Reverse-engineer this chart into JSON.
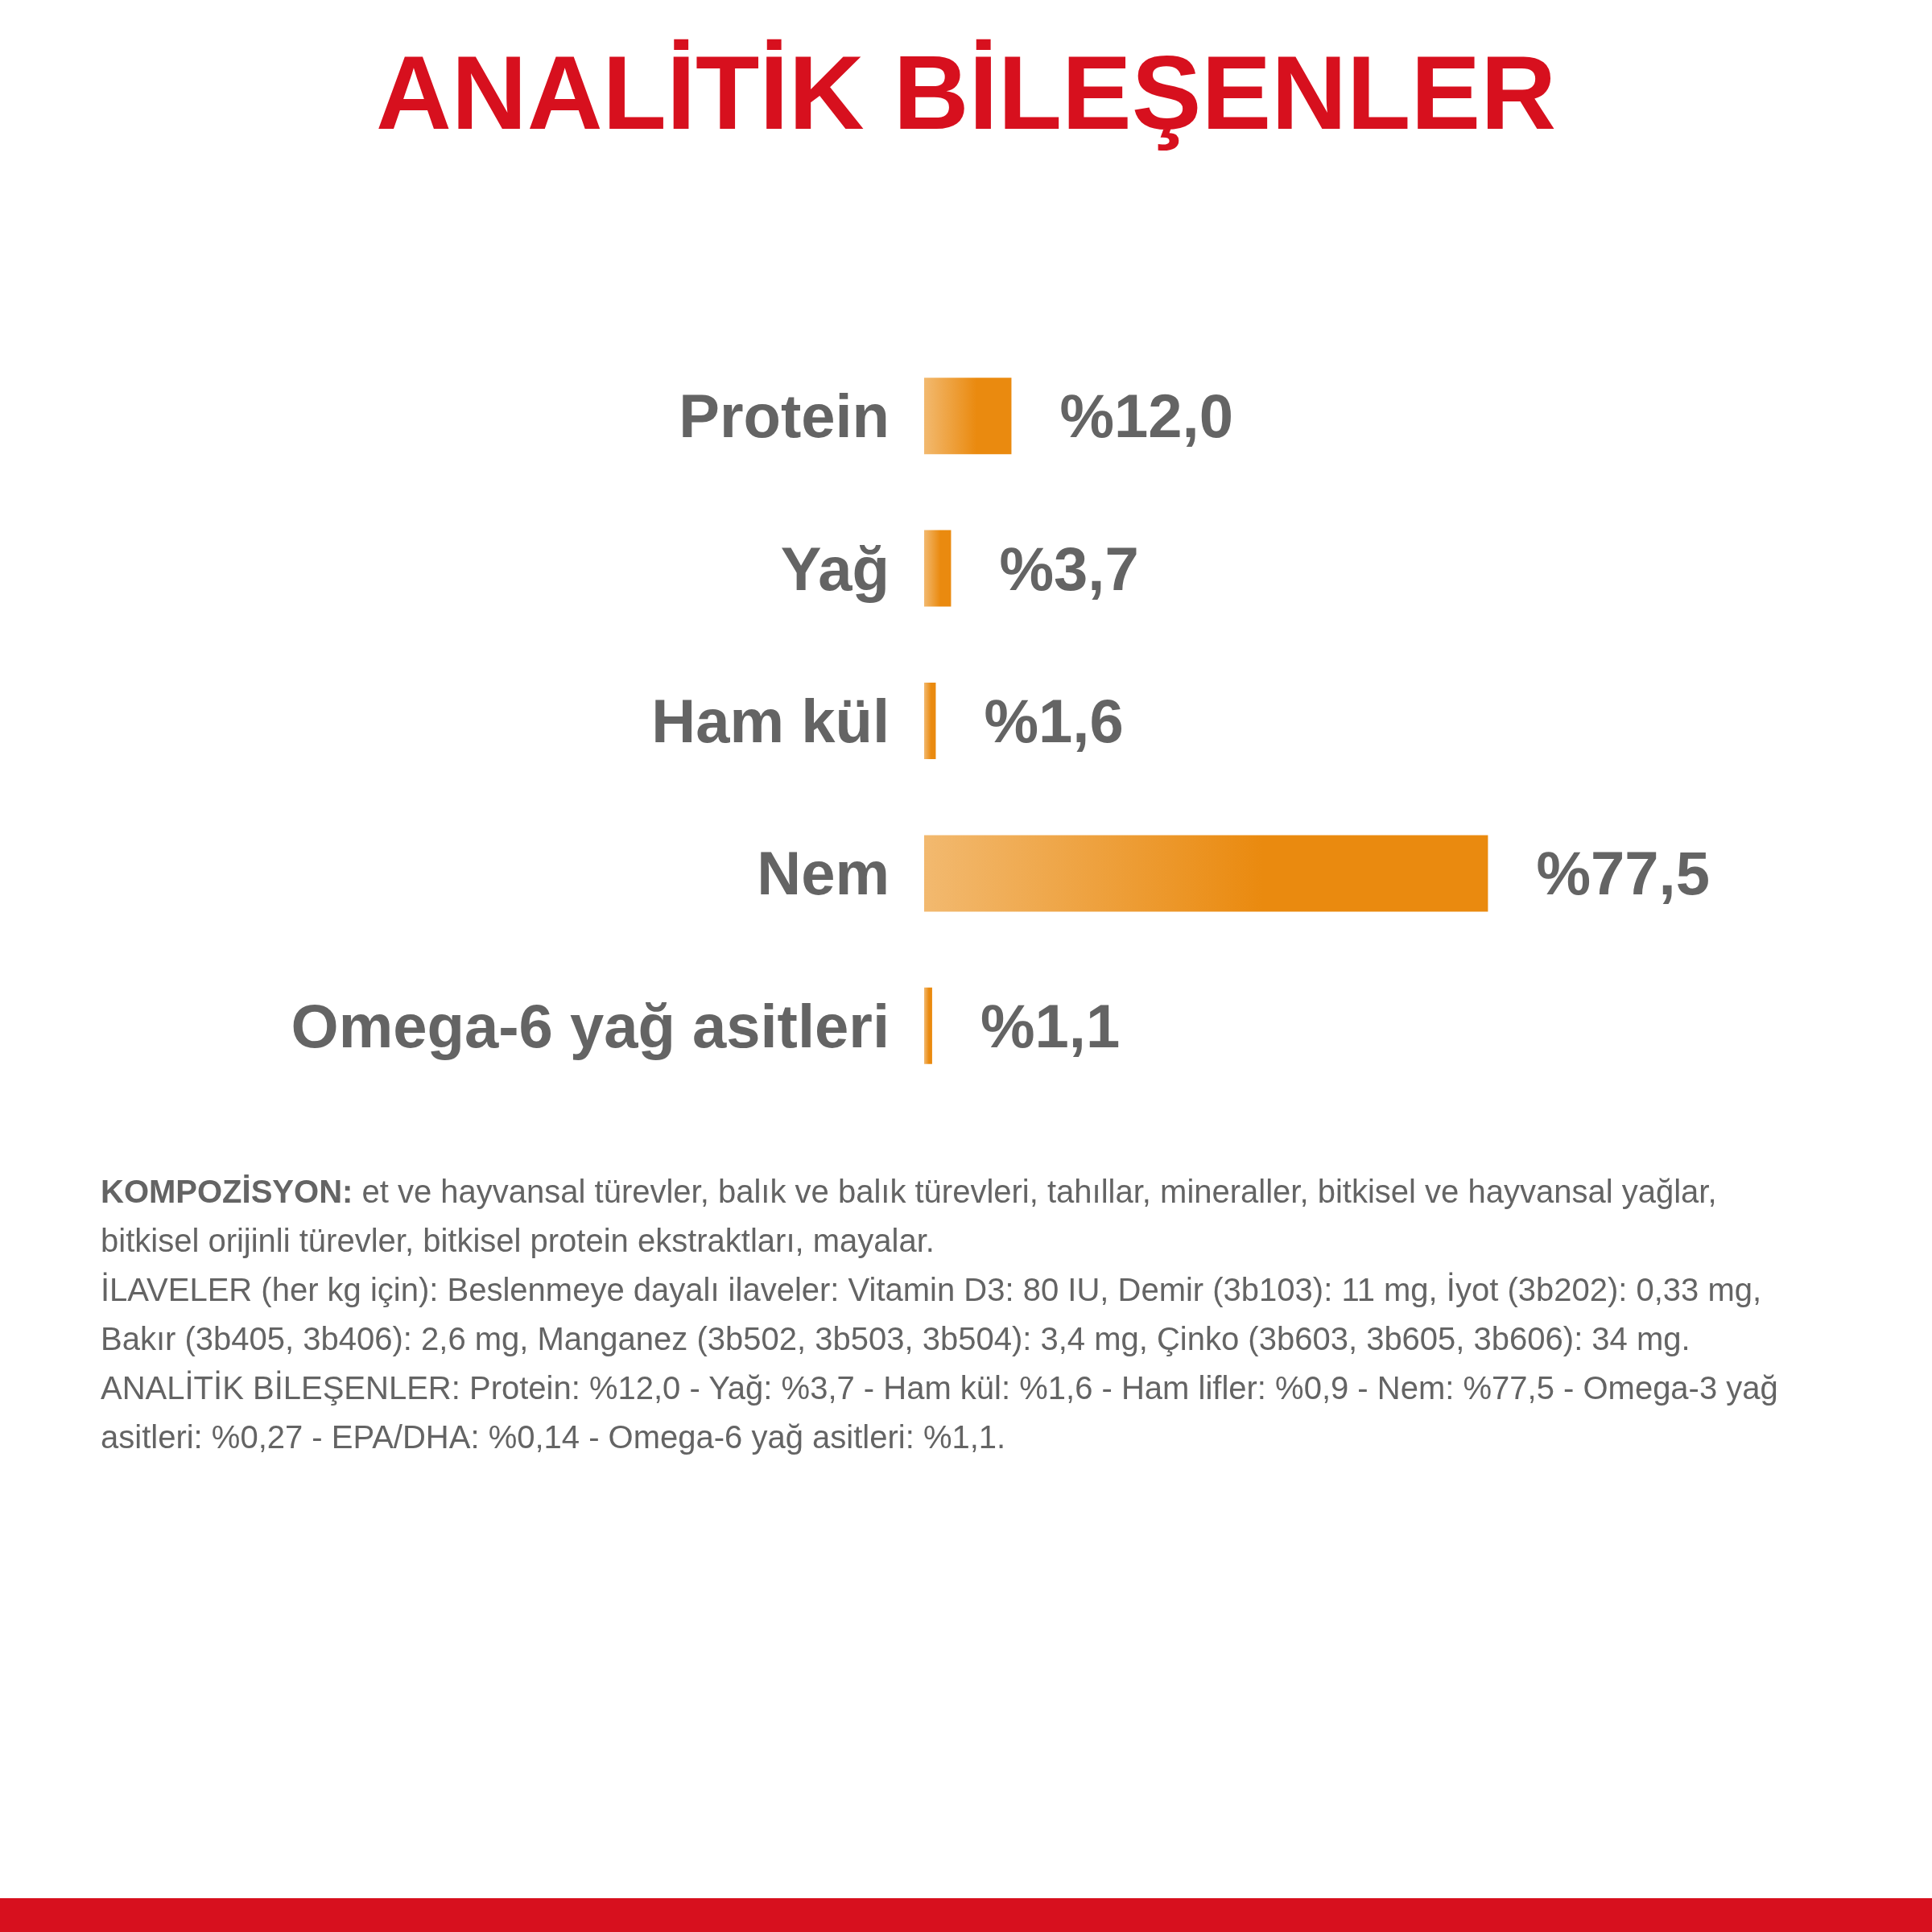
{
  "chart_data": {
    "type": "bar",
    "orientation": "horizontal",
    "title": "ANALİTİK BİLEŞENLER",
    "categories": [
      "Protein",
      "Yağ",
      "Ham kül",
      "Nem",
      "Omega-6 yağ asitleri"
    ],
    "values": [
      12.0,
      3.7,
      1.6,
      77.5,
      1.1
    ],
    "value_labels": [
      "%12,0",
      "%3,7",
      "%1,6",
      "%77,5",
      "%1,1"
    ],
    "color": "#ea8a0f",
    "grid": false,
    "tick_labels": "y",
    "annotations": [
      "KOMPOZİSYON: et ve hayvansal türevler, balık ve balık türevleri, tahıllar, mineraller, bitkisel ve hayvansal yağlar, bitkisel orijinli türevler, bitkisel protein ekstraktları, mayalar.",
      "İLAVELER (her kg için): Beslenmeye dayalı ilaveler: Vitamin D3: 80 IU, Demir (3b103): 11 mg, İyot (3b202): 0,33 mg, Bakır (3b405, 3b406): 2,6 mg, Manganez (3b502, 3b503, 3b504): 3,4 mg, Çinko (3b603, 3b605, 3b606): 34 mg.",
      "ANALİTİK BİLEŞENLER: Protein: %12,0 - Yağ: %3,7 - Ham kül: %1,6 - Ham lifler: %0,9 - Nem: %77,5 - Omega-3 yağ asitleri: %0,27 - EPA/DHA: %0,14 - Omega-6 yağ asitleri: %1,1."
    ]
  }
}
